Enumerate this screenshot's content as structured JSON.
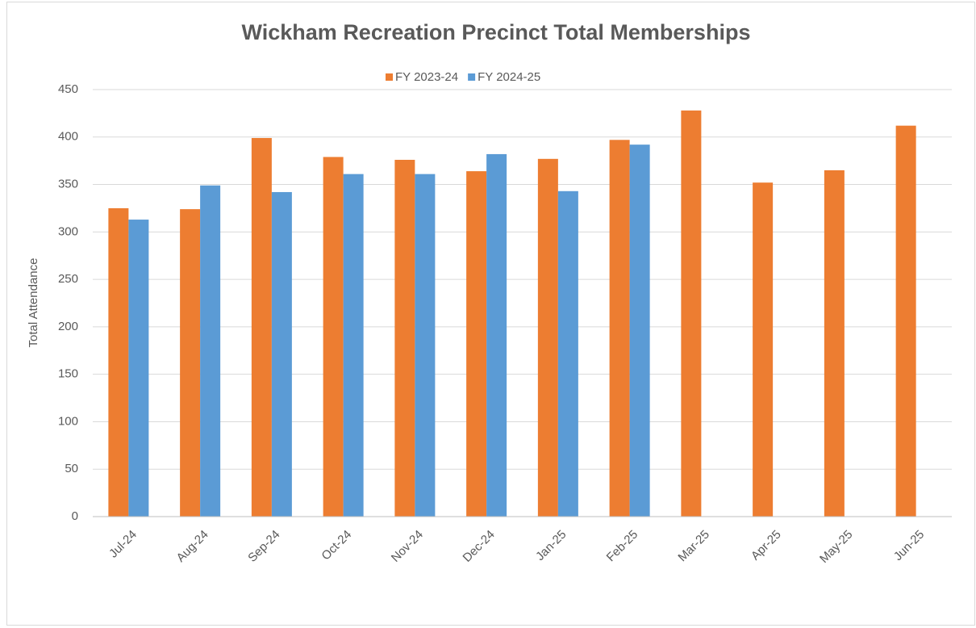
{
  "chart_data": {
    "type": "bar",
    "title": "Wickham Recreation Precinct Total Memberships",
    "y_label": "Total Attendance",
    "categories": [
      "Jul-24",
      "Aug-24",
      "Sep-24",
      "Oct-24",
      "Nov-24",
      "Dec-24",
      "Jan-25",
      "Feb-25",
      "Mar-25",
      "Apr-25",
      "May-25",
      "Jun-25"
    ],
    "series": [
      {
        "name": "FY 2023-24",
        "color": "#ed7d31",
        "values": [
          325,
          324,
          399,
          379,
          376,
          364,
          377,
          397,
          428,
          352,
          365,
          412
        ]
      },
      {
        "name": "FY 2024-25",
        "color": "#5b9bd5",
        "values": [
          313,
          349,
          342,
          361,
          361,
          382,
          343,
          392,
          null,
          null,
          null,
          null
        ]
      }
    ],
    "ylim": [
      0,
      450
    ],
    "yticks": [
      0,
      50,
      100,
      150,
      200,
      250,
      300,
      350,
      400,
      450
    ],
    "grid": true,
    "legend": "top"
  }
}
